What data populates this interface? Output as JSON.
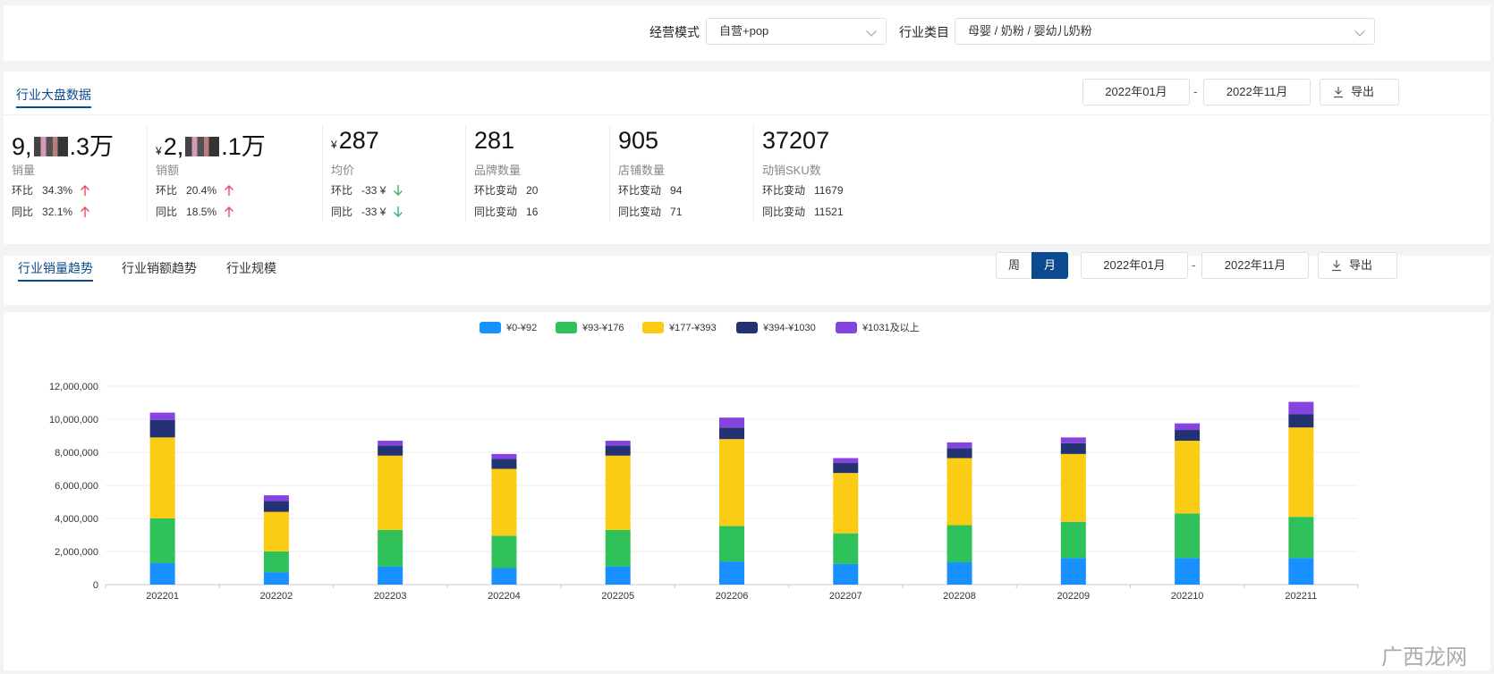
{
  "filters": {
    "mode_label": "经营模式",
    "mode_value": "自营+pop",
    "category_label": "行业类目",
    "category_value": "母婴 / 奶粉 / 婴幼儿奶粉"
  },
  "overview": {
    "tab": "行业大盘数据",
    "date_start": "2022年01月",
    "date_sep": "-",
    "date_end": "2022年11月",
    "export_label": "导出",
    "metrics": [
      {
        "value_pre": "9,",
        "value_post": ".3万",
        "yen": "",
        "name": "销量",
        "r1_label": "环比",
        "r1_value": "34.3%",
        "r1_dir": "up",
        "r2_label": "同比",
        "r2_value": "32.1%",
        "r2_dir": "up"
      },
      {
        "value_pre": "2,",
        "value_post": ".1万",
        "yen": "¥",
        "name": "销额",
        "r1_label": "环比",
        "r1_value": "20.4%",
        "r1_dir": "up",
        "r2_label": "同比",
        "r2_value": "18.5%",
        "r2_dir": "up"
      },
      {
        "value_pre": "287",
        "value_post": "",
        "yen": "¥",
        "name": "均价",
        "r1_label": "环比",
        "r1_value": "-33 ¥",
        "r1_dir": "down",
        "r2_label": "同比",
        "r2_value": "-33 ¥",
        "r2_dir": "down"
      },
      {
        "value_pre": "281",
        "value_post": "",
        "yen": "",
        "name": "品牌数量",
        "r1_label": "环比变动",
        "r1_value": "20",
        "r1_dir": "none",
        "r2_label": "同比变动",
        "r2_value": "16",
        "r2_dir": "none"
      },
      {
        "value_pre": "905",
        "value_post": "",
        "yen": "",
        "name": "店铺数量",
        "r1_label": "环比变动",
        "r1_value": "94",
        "r1_dir": "none",
        "r2_label": "同比变动",
        "r2_value": "71",
        "r2_dir": "none"
      },
      {
        "value_pre": "37207",
        "value_post": "",
        "yen": "",
        "name": "动销SKU数",
        "r1_label": "环比变动",
        "r1_value": "11679",
        "r1_dir": "none",
        "r2_label": "同比变动",
        "r2_value": "11521",
        "r2_dir": "none"
      }
    ]
  },
  "trend": {
    "tabs": [
      "行业销量趋势",
      "行业销额趋势",
      "行业规模"
    ],
    "active_tab": 0,
    "week_label": "周",
    "month_label": "月",
    "date_start": "2022年01月",
    "date_sep": "-",
    "date_end": "2022年11月",
    "export_label": "导出"
  },
  "colors": {
    "accent": "#0b4a8f",
    "up": "#e84a5f",
    "down": "#3cb371",
    "series": [
      "#1890ff",
      "#2fc25b",
      "#facc14",
      "#223273",
      "#8543e0"
    ]
  },
  "chart_data": {
    "type": "bar",
    "stacked": true,
    "categories": [
      "202201",
      "202202",
      "202203",
      "202204",
      "202205",
      "202206",
      "202207",
      "202208",
      "202209",
      "202210",
      "202211"
    ],
    "series": [
      {
        "name": "¥0-¥92",
        "values": [
          1300000,
          750000,
          1100000,
          1000000,
          1100000,
          1400000,
          1250000,
          1350000,
          1600000,
          1600000,
          1600000
        ]
      },
      {
        "name": "¥93-¥176",
        "values": [
          2700000,
          1250000,
          2200000,
          1950000,
          2200000,
          2150000,
          1850000,
          2250000,
          2200000,
          2700000,
          2500000
        ]
      },
      {
        "name": "¥177-¥393",
        "values": [
          4900000,
          2400000,
          4500000,
          4050000,
          4500000,
          5250000,
          3650000,
          4050000,
          4100000,
          4400000,
          5400000
        ]
      },
      {
        "name": "¥394-¥1030",
        "values": [
          1050000,
          650000,
          600000,
          600000,
          600000,
          700000,
          600000,
          600000,
          650000,
          650000,
          800000
        ]
      },
      {
        "name": "¥1031及以上",
        "values": [
          450000,
          350000,
          300000,
          300000,
          300000,
          600000,
          300000,
          350000,
          350000,
          400000,
          750000
        ]
      }
    ],
    "yticks": [
      "0",
      "2,000,000",
      "4,000,000",
      "6,000,000",
      "8,000,000",
      "10,000,000",
      "12,000,000"
    ],
    "ylim": [
      0,
      12000000
    ],
    "legend_position": "top-center",
    "grid": true
  },
  "watermark": "广西龙网"
}
